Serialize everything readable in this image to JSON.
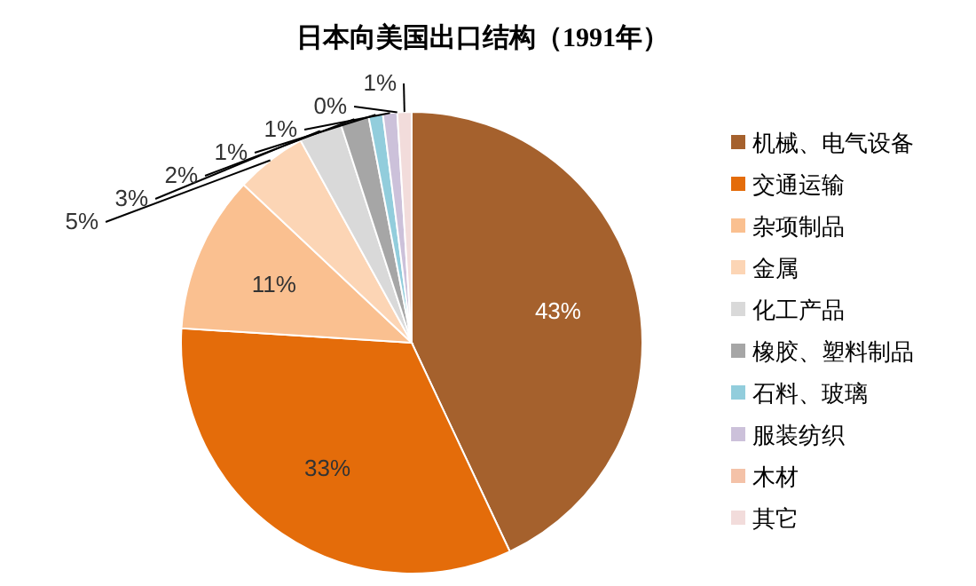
{
  "chart_data": {
    "type": "pie",
    "title": "日本向美国出口结构（1991年）",
    "categories": [
      "机械、电气设备",
      "交通运输",
      "杂项制品",
      "金属",
      "化工产品",
      "橡胶、塑料制品",
      "石料、玻璃",
      "服装纺织",
      "木材",
      "其它"
    ],
    "values": [
      43,
      33,
      11,
      5,
      3,
      2,
      1,
      1,
      0,
      1
    ],
    "colors": [
      "#a5612d",
      "#e46c0a",
      "#fac090",
      "#fcd5b5",
      "#d9d9d9",
      "#a6a6a6",
      "#92cddc",
      "#ccc1da",
      "#f4c2a8",
      "#f2dcdb"
    ],
    "value_labels": [
      "43%",
      "33%",
      "11%",
      "5%",
      "3%",
      "2%",
      "1%",
      "1%",
      "0%",
      "1%"
    ],
    "legend": "right"
  }
}
